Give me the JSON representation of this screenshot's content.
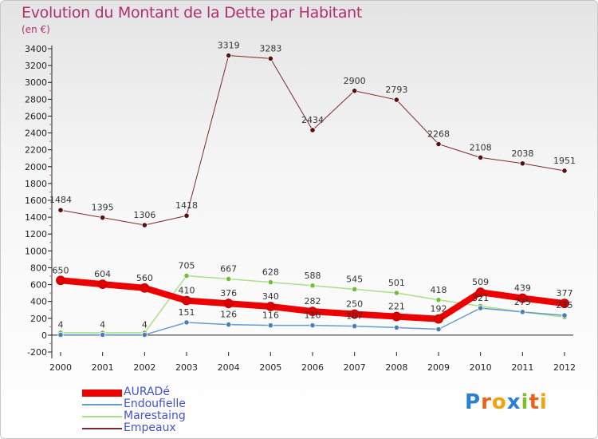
{
  "title": "Evolution du Montant de la Dette par Habitant",
  "subtitle": "(en €)",
  "logo": {
    "text": "Proxiti",
    "letters": [
      "P",
      "r",
      "o",
      "x",
      "i",
      "t",
      "i"
    ],
    "colors": [
      "#2a7fd4",
      "#e8641e",
      "#f2a20c",
      "#2a7fd4",
      "#7fbf2a",
      "#e8641e",
      "#f2a20c"
    ]
  },
  "chart_data": {
    "type": "line",
    "x": [
      "2000",
      "2001",
      "2002",
      "2003",
      "2004",
      "2005",
      "2006",
      "2007",
      "2008",
      "2009",
      "2010",
      "2011",
      "2012"
    ],
    "ylim": [
      -200,
      3400
    ],
    "yticks": [
      -200,
      0,
      200,
      400,
      600,
      800,
      1000,
      1200,
      1400,
      1600,
      1800,
      2000,
      2200,
      2400,
      2600,
      2800,
      3000,
      3200,
      3400
    ],
    "grid": false,
    "legend_position": "bottom-left",
    "series": [
      {
        "name": "Empeaux",
        "color": "#7a2a2a",
        "marker": "#5a1010",
        "width": 1,
        "values": [
          1484,
          1395,
          1306,
          1418,
          3319,
          3283,
          2434,
          2900,
          2793,
          2268,
          2108,
          2038,
          1951
        ],
        "labels": [
          "1484",
          "1395",
          "1306",
          "1418",
          "3319",
          "3283",
          "2434",
          "2900",
          "2793",
          "2268",
          "2108",
          "2038",
          "1951"
        ]
      },
      {
        "name": "Marestaing",
        "color": "#a8e088",
        "marker": "#6cbf3c",
        "width": 1.5,
        "values": [
          29,
          28,
          28,
          705,
          667,
          628,
          588,
          545,
          501,
          418,
          345,
          275,
          215
        ],
        "labels": [
          "",
          "",
          "",
          "705",
          "667",
          "628",
          "588",
          "545",
          "501",
          "418",
          "",
          "",
          ""
        ]
      },
      {
        "name": "Endoufielle",
        "color": "#6699cc",
        "marker": "#4a7fb5",
        "width": 1.5,
        "values": [
          4,
          4,
          4,
          151,
          126,
          116,
          116,
          107,
          90,
          70,
          321,
          275,
          235
        ],
        "labels": [
          "4",
          "4",
          "4",
          "151",
          "126",
          "116",
          "116",
          "107",
          "",
          "",
          "321",
          "275",
          "235"
        ]
      },
      {
        "name": "AURADé",
        "color": "#ee0000",
        "marker": "#dd0000",
        "width": 8,
        "values": [
          650,
          604,
          560,
          410,
          376,
          340,
          282,
          250,
          221,
          192,
          509,
          439,
          377
        ],
        "labels": [
          "650",
          "604",
          "560",
          "410",
          "376",
          "340",
          "282",
          "250",
          "221",
          "192",
          "509",
          "439",
          "377"
        ]
      }
    ],
    "legend": [
      {
        "label": "AURADé",
        "color": "#ee0000",
        "thickness": 9,
        "text_color": "#4055c8"
      },
      {
        "label": "Endoufielle",
        "color": "#6699cc",
        "thickness": 2,
        "text_color": "#4055c8"
      },
      {
        "label": "Marestaing",
        "color": "#a8e088",
        "thickness": 2,
        "text_color": "#4055c8"
      },
      {
        "label": "Empeaux",
        "color": "#7a2a2a",
        "thickness": 2,
        "text_color": "#4055c8"
      }
    ]
  }
}
